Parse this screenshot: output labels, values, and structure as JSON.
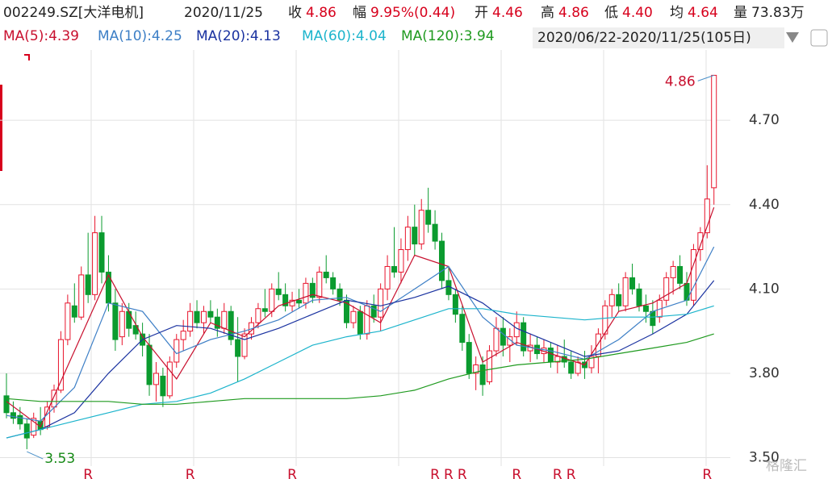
{
  "header": {
    "code": "002249.SZ[大洋电机]",
    "date": "2020/11/25",
    "quote": [
      {
        "label": "收",
        "value": "4.86",
        "color": "#d7001c"
      },
      {
        "label": "幅",
        "value": "9.95%(0.44)",
        "color": "#d7001c"
      },
      {
        "label": "开",
        "value": "4.46",
        "color": "#d7001c"
      },
      {
        "label": "高",
        "value": "4.86",
        "color": "#d7001c"
      },
      {
        "label": "低",
        "value": "4.40",
        "color": "#d7001c"
      },
      {
        "label": "均",
        "value": "4.64",
        "color": "#d7001c"
      },
      {
        "label": "量",
        "value": "73.83万",
        "color": "#222222"
      }
    ],
    "range": "2020/06/22-2020/11/25(105日)"
  },
  "watermark": "格隆汇",
  "chart_data": {
    "type": "candlestick",
    "up_color": "#e8142c",
    "down_color": "#0b9b2f",
    "ylim": [
      3.47,
      4.95
    ],
    "yticks": [
      {
        "value": 3.5,
        "label": "3.50"
      },
      {
        "value": 3.8,
        "label": "3.80"
      },
      {
        "value": 4.1,
        "label": "4.10"
      },
      {
        "value": 4.4,
        "label": "4.40"
      },
      {
        "value": 4.7,
        "label": "4.70"
      }
    ],
    "grid": true,
    "candles": [
      [
        3.72,
        3.8,
        3.64,
        3.66
      ],
      [
        3.66,
        3.7,
        3.62,
        3.64
      ],
      [
        3.65,
        3.68,
        3.6,
        3.62
      ],
      [
        3.62,
        3.64,
        3.53,
        3.57
      ],
      [
        3.58,
        3.66,
        3.57,
        3.64
      ],
      [
        3.63,
        3.68,
        3.58,
        3.6
      ],
      [
        3.61,
        3.7,
        3.6,
        3.68
      ],
      [
        3.68,
        3.76,
        3.66,
        3.74
      ],
      [
        3.74,
        3.95,
        3.73,
        3.92
      ],
      [
        3.92,
        4.08,
        3.9,
        4.05
      ],
      [
        4.04,
        4.12,
        3.98,
        4.0
      ],
      [
        4.0,
        4.18,
        3.99,
        4.15
      ],
      [
        4.15,
        4.3,
        4.05,
        4.08
      ],
      [
        4.08,
        4.36,
        4.06,
        4.3
      ],
      [
        4.3,
        4.36,
        4.12,
        4.16
      ],
      [
        4.16,
        4.22,
        4.02,
        4.05
      ],
      [
        4.05,
        4.1,
        3.88,
        3.92
      ],
      [
        3.93,
        4.05,
        3.9,
        4.02
      ],
      [
        4.02,
        4.05,
        3.93,
        3.96
      ],
      [
        3.97,
        4.02,
        3.92,
        3.94
      ],
      [
        3.94,
        3.98,
        3.86,
        3.9
      ],
      [
        3.9,
        3.94,
        3.72,
        3.76
      ],
      [
        3.76,
        3.84,
        3.7,
        3.8
      ],
      [
        3.79,
        3.82,
        3.68,
        3.72
      ],
      [
        3.72,
        3.86,
        3.71,
        3.84
      ],
      [
        3.84,
        3.94,
        3.82,
        3.92
      ],
      [
        3.92,
        3.99,
        3.88,
        3.95
      ],
      [
        3.95,
        4.05,
        3.93,
        4.02
      ],
      [
        4.02,
        4.06,
        3.96,
        3.98
      ],
      [
        3.98,
        4.04,
        3.94,
        4.02
      ],
      [
        4.02,
        4.06,
        3.98,
        4.0
      ],
      [
        4.0,
        4.03,
        3.93,
        3.96
      ],
      [
        3.96,
        4.05,
        3.94,
        4.02
      ],
      [
        4.02,
        4.04,
        3.9,
        3.92
      ],
      [
        3.92,
        4.0,
        3.77,
        3.86
      ],
      [
        3.86,
        3.96,
        3.85,
        3.94
      ],
      [
        3.94,
        4.0,
        3.92,
        3.98
      ],
      [
        3.98,
        4.05,
        3.96,
        4.03
      ],
      [
        4.03,
        4.1,
        4.0,
        4.02
      ],
      [
        4.02,
        4.12,
        4.0,
        4.1
      ],
      [
        4.1,
        4.16,
        4.06,
        4.08
      ],
      [
        4.08,
        4.12,
        4.02,
        4.04
      ],
      [
        4.04,
        4.09,
        4.02,
        4.06
      ],
      [
        4.06,
        4.1,
        4.03,
        4.05
      ],
      [
        4.05,
        4.14,
        4.03,
        4.12
      ],
      [
        4.12,
        4.14,
        4.05,
        4.07
      ],
      [
        4.07,
        4.18,
        4.05,
        4.16
      ],
      [
        4.16,
        4.22,
        4.12,
        4.14
      ],
      [
        4.14,
        4.16,
        4.08,
        4.1
      ],
      [
        4.1,
        4.12,
        4.04,
        4.06
      ],
      [
        4.06,
        4.08,
        3.96,
        3.98
      ],
      [
        3.98,
        4.04,
        3.96,
        4.02
      ],
      [
        4.02,
        4.04,
        3.92,
        3.94
      ],
      [
        3.94,
        4.06,
        3.92,
        4.04
      ],
      [
        4.04,
        4.08,
        3.98,
        4.0
      ],
      [
        4.0,
        4.12,
        3.95,
        4.1
      ],
      [
        4.1,
        4.22,
        4.06,
        4.18
      ],
      [
        4.18,
        4.32,
        4.14,
        4.16
      ],
      [
        4.16,
        4.28,
        4.12,
        4.24
      ],
      [
        4.24,
        4.36,
        4.2,
        4.32
      ],
      [
        4.32,
        4.4,
        4.22,
        4.26
      ],
      [
        4.26,
        4.42,
        4.24,
        4.38
      ],
      [
        4.38,
        4.46,
        4.3,
        4.33
      ],
      [
        4.33,
        4.38,
        4.24,
        4.27
      ],
      [
        4.27,
        4.3,
        4.1,
        4.13
      ],
      [
        4.13,
        4.18,
        4.06,
        4.08
      ],
      [
        4.08,
        4.1,
        3.98,
        4.01
      ],
      [
        4.01,
        4.04,
        3.88,
        3.91
      ],
      [
        3.91,
        3.94,
        3.78,
        3.8
      ],
      [
        3.8,
        3.86,
        3.74,
        3.83
      ],
      [
        3.83,
        3.86,
        3.72,
        3.76
      ],
      [
        3.77,
        3.9,
        3.76,
        3.88
      ],
      [
        3.88,
        4.0,
        3.86,
        3.96
      ],
      [
        3.96,
        4.0,
        3.86,
        3.9
      ],
      [
        3.9,
        3.96,
        3.84,
        3.93
      ],
      [
        3.93,
        4.02,
        3.9,
        3.98
      ],
      [
        3.98,
        4.0,
        3.86,
        3.88
      ],
      [
        3.88,
        3.94,
        3.84,
        3.9
      ],
      [
        3.9,
        3.93,
        3.85,
        3.87
      ],
      [
        3.87,
        3.92,
        3.84,
        3.89
      ],
      [
        3.89,
        3.91,
        3.82,
        3.84
      ],
      [
        3.84,
        3.9,
        3.8,
        3.86
      ],
      [
        3.86,
        3.92,
        3.82,
        3.84
      ],
      [
        3.84,
        3.88,
        3.78,
        3.8
      ],
      [
        3.8,
        3.86,
        3.79,
        3.84
      ],
      [
        3.84,
        3.88,
        3.78,
        3.82
      ],
      [
        3.82,
        3.9,
        3.8,
        3.86
      ],
      [
        3.86,
        3.96,
        3.8,
        3.94
      ],
      [
        3.94,
        4.06,
        3.92,
        4.04
      ],
      [
        4.04,
        4.1,
        4.0,
        4.08
      ],
      [
        4.08,
        4.12,
        4.02,
        4.04
      ],
      [
        4.04,
        4.16,
        4.02,
        4.14
      ],
      [
        4.14,
        4.19,
        4.08,
        4.1
      ],
      [
        4.1,
        4.12,
        4.02,
        4.04
      ],
      [
        4.04,
        4.08,
        3.98,
        4.02
      ],
      [
        4.02,
        4.06,
        3.94,
        3.97
      ],
      [
        4.0,
        4.08,
        3.98,
        4.06
      ],
      [
        4.06,
        4.16,
        4.04,
        4.14
      ],
      [
        4.14,
        4.2,
        4.08,
        4.18
      ],
      [
        4.18,
        4.22,
        4.1,
        4.12
      ],
      [
        4.12,
        4.16,
        4.04,
        4.06
      ],
      [
        4.06,
        4.26,
        4.04,
        4.24
      ],
      [
        4.24,
        4.32,
        4.2,
        4.3
      ],
      [
        4.3,
        4.54,
        4.28,
        4.42
      ],
      [
        4.46,
        4.86,
        4.4,
        4.86
      ]
    ],
    "x": [
      0,
      5,
      10,
      15,
      20,
      25,
      30,
      35,
      40,
      45,
      50,
      55,
      60,
      65,
      70,
      75,
      80,
      85,
      90,
      95,
      100,
      104
    ],
    "series": [
      {
        "name": "MA(5):4.39",
        "color": "#c8102e",
        "values": [
          3.7,
          3.61,
          3.88,
          4.15,
          3.93,
          3.78,
          3.98,
          3.93,
          4.04,
          4.08,
          4.05,
          3.98,
          4.22,
          4.18,
          3.84,
          3.91,
          3.87,
          3.83,
          4.02,
          4.05,
          4.12,
          4.39
        ]
      },
      {
        "name": "MA(10):4.25",
        "color": "#3d7fc6",
        "values": [
          3.65,
          3.63,
          3.75,
          4.05,
          4.02,
          3.87,
          3.92,
          3.95,
          3.99,
          4.06,
          4.07,
          4.02,
          4.1,
          4.18,
          4.0,
          3.9,
          3.88,
          3.85,
          3.92,
          4.02,
          4.06,
          4.25
        ]
      },
      {
        "name": "MA(20):4.13",
        "color": "#1a32a0",
        "values": [
          3.57,
          3.6,
          3.66,
          3.8,
          3.92,
          3.97,
          3.96,
          3.92,
          3.96,
          4.01,
          4.06,
          4.04,
          4.07,
          4.11,
          4.05,
          3.96,
          3.91,
          3.86,
          3.88,
          3.94,
          4.01,
          4.13
        ]
      },
      {
        "name": "MA(60):4.04",
        "color": "#1cb4cc",
        "values": [
          3.57,
          3.6,
          3.63,
          3.66,
          3.69,
          3.7,
          3.73,
          3.78,
          3.84,
          3.9,
          3.93,
          3.95,
          3.99,
          4.03,
          4.03,
          4.01,
          4.0,
          3.99,
          4.0,
          4.0,
          4.01,
          4.04
        ]
      },
      {
        "name": "MA(120):3.94",
        "color": "#1f9a1f",
        "values": [
          3.71,
          3.7,
          3.7,
          3.7,
          3.69,
          3.69,
          3.7,
          3.71,
          3.71,
          3.71,
          3.71,
          3.72,
          3.74,
          3.78,
          3.81,
          3.83,
          3.84,
          3.85,
          3.87,
          3.89,
          3.91,
          3.94
        ]
      }
    ],
    "annotations": [
      {
        "x": 104,
        "y": 4.86,
        "color": "#c8102e"
      },
      {
        "x": 3,
        "y": 3.53,
        "color": "#178a17"
      }
    ],
    "markers": {
      "label": "R",
      "x": [
        12,
        27,
        42,
        63,
        65,
        67,
        75,
        81,
        83,
        103
      ],
      "color": "#c8102e"
    }
  }
}
